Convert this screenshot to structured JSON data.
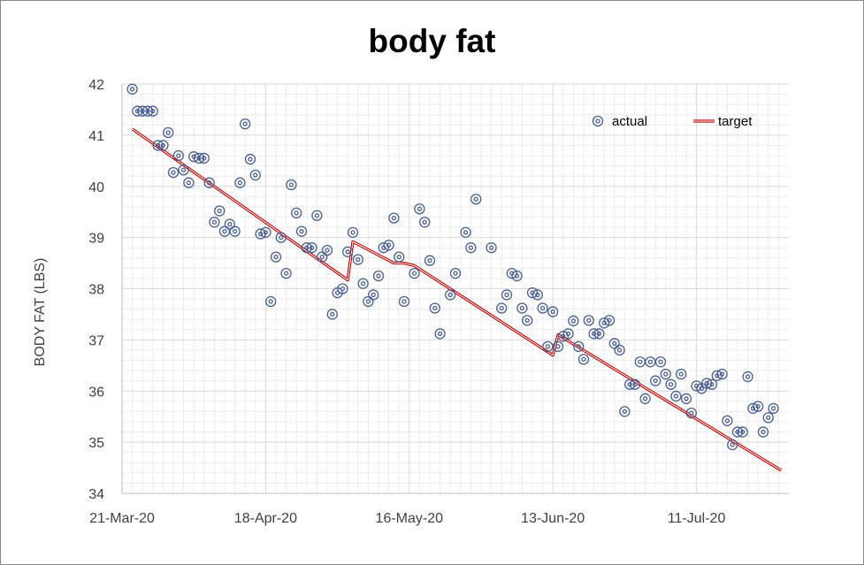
{
  "chart_data": {
    "type": "scatter",
    "title": "body fat",
    "ylabel": "BODY FAT (LBS)",
    "xlabel": "",
    "ylim": [
      34,
      42
    ],
    "y_ticks": [
      "42",
      "41",
      "40",
      "39",
      "38",
      "37",
      "36",
      "35",
      "34"
    ],
    "x_tick_labels": [
      "21-Mar-20",
      "18-Apr-20",
      "16-May-20",
      "13-Jun-20",
      "11-Jul-20"
    ],
    "x_range_days": [
      0,
      130
    ],
    "x_tick_days": [
      0,
      28,
      56,
      84,
      112
    ],
    "grid": true,
    "legend": {
      "position": "top-right",
      "actual_label": "actual",
      "target_label": "target"
    },
    "colors": {
      "actual": "#4a5f8f",
      "target": "#c00000",
      "grid": "#d9d9d9",
      "axis": "#bfbfbf"
    },
    "series": [
      {
        "name": "actual",
        "points": [
          [
            2,
            41.9
          ],
          [
            3,
            41.47
          ],
          [
            4,
            41.47
          ],
          [
            5,
            41.47
          ],
          [
            6,
            41.47
          ],
          [
            7,
            40.8
          ],
          [
            8,
            40.8
          ],
          [
            9,
            41.05
          ],
          [
            10,
            40.27
          ],
          [
            11,
            40.6
          ],
          [
            12,
            40.32
          ],
          [
            13,
            40.07
          ],
          [
            14,
            40.58
          ],
          [
            15,
            40.55
          ],
          [
            16,
            40.55
          ],
          [
            17,
            40.07
          ],
          [
            18,
            39.3
          ],
          [
            19,
            39.52
          ],
          [
            20,
            39.12
          ],
          [
            21,
            39.26
          ],
          [
            22,
            39.12
          ],
          [
            23,
            40.07
          ],
          [
            24,
            41.22
          ],
          [
            25,
            40.53
          ],
          [
            26,
            40.22
          ],
          [
            27,
            39.07
          ],
          [
            28,
            39.1
          ],
          [
            29,
            37.75
          ],
          [
            30,
            38.62
          ],
          [
            31,
            39.0
          ],
          [
            32,
            38.3
          ],
          [
            33,
            40.03
          ],
          [
            34,
            39.48
          ],
          [
            35,
            39.12
          ],
          [
            36,
            38.8
          ],
          [
            37,
            38.8
          ],
          [
            38,
            39.43
          ],
          [
            39,
            38.62
          ],
          [
            40,
            38.75
          ],
          [
            41,
            37.5
          ],
          [
            42,
            37.92
          ],
          [
            43,
            38.0
          ],
          [
            44,
            38.72
          ],
          [
            45,
            39.1
          ],
          [
            46,
            38.57
          ],
          [
            47,
            38.1
          ],
          [
            48,
            37.75
          ],
          [
            49,
            37.88
          ],
          [
            50,
            38.25
          ],
          [
            51,
            38.8
          ],
          [
            52,
            38.85
          ],
          [
            53,
            39.38
          ],
          [
            54,
            38.62
          ],
          [
            55,
            37.75
          ],
          [
            57,
            38.3
          ],
          [
            58,
            39.56
          ],
          [
            59,
            39.3
          ],
          [
            60,
            38.55
          ],
          [
            61,
            37.62
          ],
          [
            62,
            37.12
          ],
          [
            64,
            37.88
          ],
          [
            65,
            38.3
          ],
          [
            67,
            39.1
          ],
          [
            68,
            38.8
          ],
          [
            69,
            39.75
          ],
          [
            72,
            38.8
          ],
          [
            74,
            37.62
          ],
          [
            75,
            37.88
          ],
          [
            76,
            38.3
          ],
          [
            77,
            38.25
          ],
          [
            78,
            37.62
          ],
          [
            79,
            37.38
          ],
          [
            80,
            37.92
          ],
          [
            81,
            37.88
          ],
          [
            82,
            37.62
          ],
          [
            83,
            36.87
          ],
          [
            84,
            37.55
          ],
          [
            85,
            36.87
          ],
          [
            86,
            37.07
          ],
          [
            87,
            37.12
          ],
          [
            88,
            37.37
          ],
          [
            89,
            36.87
          ],
          [
            90,
            36.62
          ],
          [
            91,
            37.38
          ],
          [
            92,
            37.12
          ],
          [
            93,
            37.12
          ],
          [
            94,
            37.33
          ],
          [
            95,
            37.38
          ],
          [
            96,
            36.93
          ],
          [
            97,
            36.8
          ],
          [
            98,
            35.6
          ],
          [
            99,
            36.13
          ],
          [
            100,
            36.13
          ],
          [
            101,
            36.57
          ],
          [
            102,
            35.85
          ],
          [
            103,
            36.57
          ],
          [
            104,
            36.2
          ],
          [
            105,
            36.57
          ],
          [
            106,
            36.33
          ],
          [
            107,
            36.13
          ],
          [
            108,
            35.9
          ],
          [
            109,
            36.33
          ],
          [
            110,
            35.85
          ],
          [
            111,
            35.57
          ],
          [
            112,
            36.1
          ],
          [
            113,
            36.05
          ],
          [
            114,
            36.15
          ],
          [
            115,
            36.13
          ],
          [
            116,
            36.3
          ],
          [
            117,
            36.33
          ],
          [
            118,
            35.42
          ],
          [
            119,
            34.95
          ],
          [
            120,
            35.2
          ],
          [
            121,
            35.2
          ],
          [
            122,
            36.28
          ],
          [
            123,
            35.66
          ],
          [
            124,
            35.7
          ],
          [
            125,
            35.2
          ],
          [
            126,
            35.48
          ],
          [
            127,
            35.66
          ]
        ]
      },
      {
        "name": "target",
        "points": [
          [
            2,
            41.12
          ],
          [
            44,
            38.17
          ],
          [
            45,
            38.92
          ],
          [
            53,
            38.5
          ],
          [
            55,
            38.5
          ],
          [
            57,
            38.45
          ],
          [
            84,
            36.7
          ],
          [
            85,
            37.1
          ],
          [
            128.5,
            34.45
          ]
        ]
      }
    ]
  }
}
